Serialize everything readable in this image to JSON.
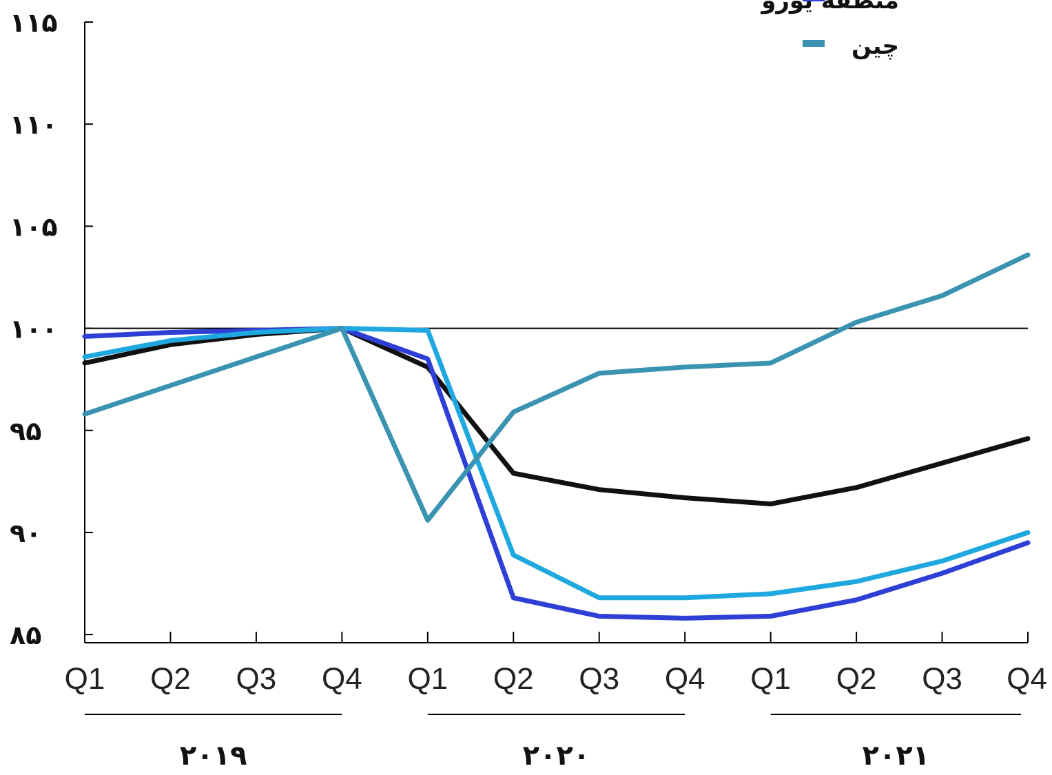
{
  "chart_data": {
    "type": "line",
    "categories": [
      "Q1",
      "Q2",
      "Q3",
      "Q4",
      "Q1",
      "Q2",
      "Q3",
      "Q4",
      "Q1",
      "Q2",
      "Q3",
      "Q4"
    ],
    "year_groups": [
      {
        "label": "۲۰۱۹",
        "from": 0,
        "to": 3
      },
      {
        "label": "۲۰۲۰",
        "from": 4,
        "to": 7
      },
      {
        "label": "۲۰۲۱",
        "from": 8,
        "to": 11
      }
    ],
    "y_ticks": [
      {
        "value": 85,
        "label": "۸۵"
      },
      {
        "value": 90,
        "label": "۹۰"
      },
      {
        "value": 95,
        "label": "۹۵"
      },
      {
        "value": 100,
        "label": "۱۰۰"
      },
      {
        "value": 105,
        "label": "۱۰۵"
      },
      {
        "value": 110,
        "label": "۱۱۰"
      },
      {
        "value": 115,
        "label": "۱۱۵"
      }
    ],
    "ylim": [
      84.6,
      115
    ],
    "reference_line": 100,
    "series": [
      {
        "color": "#111111",
        "values": [
          98.3,
          99.2,
          99.7,
          100.0,
          98.1,
          92.9,
          92.1,
          91.7,
          91.4,
          92.2,
          93.4,
          94.6
        ]
      },
      {
        "name": "منطقه یورو",
        "color": "#2e3fd6",
        "values": [
          99.6,
          99.8,
          99.9,
          100.0,
          98.5,
          86.8,
          85.9,
          85.8,
          85.9,
          86.7,
          88.0,
          89.5
        ]
      },
      {
        "color": "#1fa8e0",
        "values": [
          98.6,
          99.4,
          99.8,
          100.0,
          99.9,
          88.9,
          86.8,
          86.8,
          87.0,
          87.6,
          88.6,
          90.0
        ]
      },
      {
        "name": "چین",
        "color": "#3a93b0",
        "values": [
          95.8,
          97.2,
          98.6,
          100.0,
          90.6,
          95.9,
          97.8,
          98.1,
          98.3,
          100.3,
          101.6,
          103.6
        ]
      }
    ]
  },
  "legend": [
    {
      "label": "منطقه یورو",
      "color": "#2e3fd6"
    },
    {
      "label": "چین",
      "color": "#3a93b0"
    }
  ]
}
